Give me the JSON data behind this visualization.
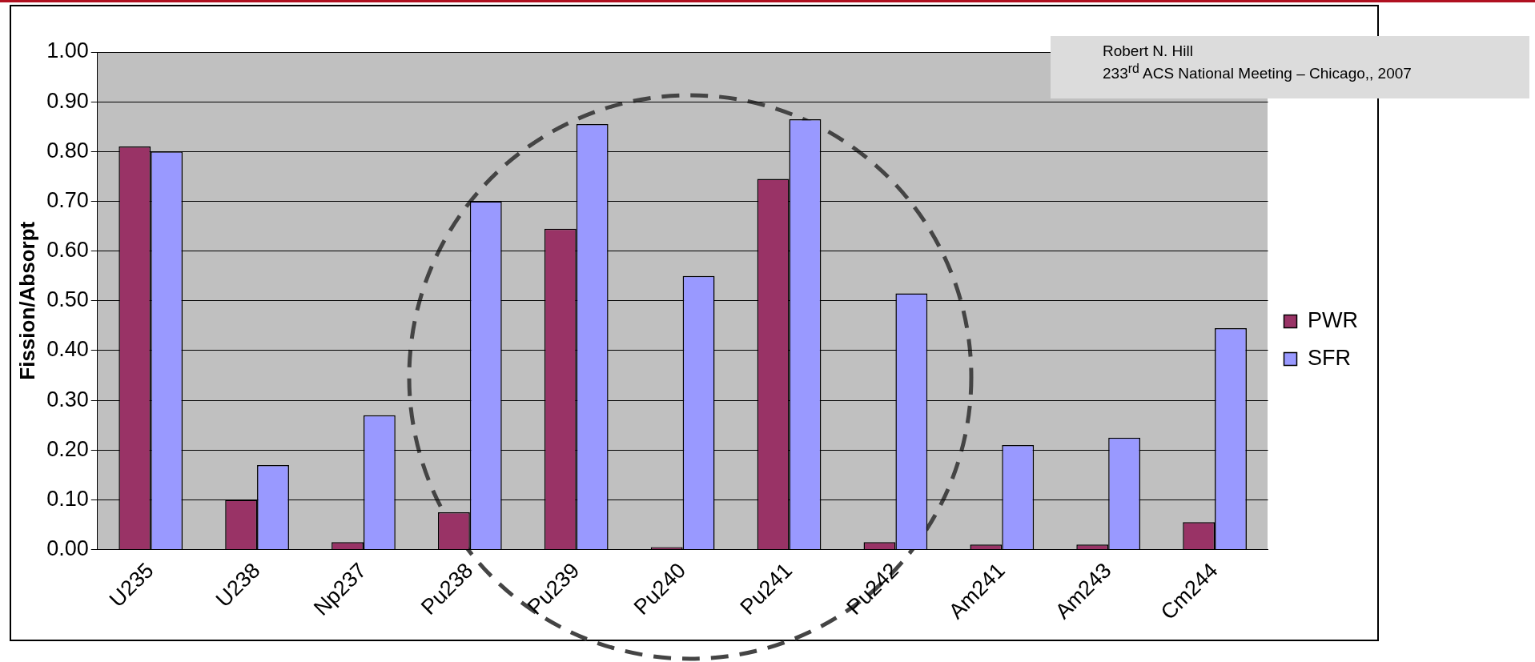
{
  "chart_data": {
    "type": "bar",
    "ylabel": "Fission/Absorpt",
    "categories": [
      "U235",
      "U238",
      "Np237",
      "Pu238",
      "Pu239",
      "Pu240",
      "Pu241",
      "Pu242",
      "Am241",
      "Am243",
      "Cm244"
    ],
    "series": [
      {
        "name": "PWR",
        "color": "#993366",
        "values": [
          0.81,
          0.1,
          0.015,
          0.075,
          0.645,
          0.005,
          0.745,
          0.015,
          0.01,
          0.01,
          0.055
        ]
      },
      {
        "name": "SFR",
        "color": "#9999ff",
        "values": [
          0.8,
          0.17,
          0.27,
          0.7,
          0.855,
          0.55,
          0.865,
          0.515,
          0.21,
          0.225,
          0.445
        ]
      }
    ],
    "ylim": [
      0,
      1
    ],
    "yticks": [
      {
        "value": 0,
        "label": "0.00"
      },
      {
        "value": 0.1,
        "label": "0.10"
      },
      {
        "value": 0.2,
        "label": "0.20"
      },
      {
        "value": 0.3,
        "label": "0.30"
      },
      {
        "value": 0.4,
        "label": "0.40"
      },
      {
        "value": 0.5,
        "label": "0.50"
      },
      {
        "value": 0.6,
        "label": "0.60"
      },
      {
        "value": 0.7,
        "label": "0.70"
      },
      {
        "value": 0.8,
        "label": "0.80"
      },
      {
        "value": 0.9,
        "label": "0.90"
      },
      {
        "value": 1,
        "label": "1.00"
      }
    ],
    "grid": "y",
    "legend": "right",
    "annotations": [
      "Robert N. Hill\n233$^{rd}$ ACS National Meeting – Chicago,, 2007"
    ]
  }
}
